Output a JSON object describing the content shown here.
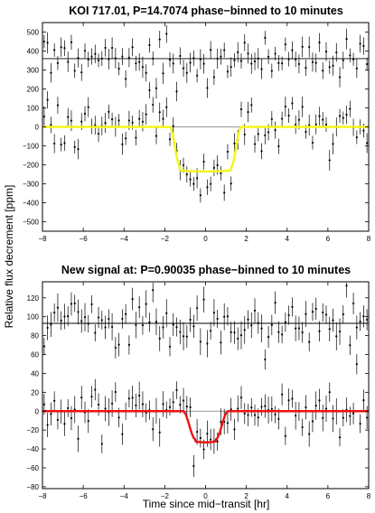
{
  "figure": {
    "ylabel": "Relative flux decrement [ppm]",
    "xlabel": "Time since mid−transit [hr]"
  },
  "chart_data": [
    {
      "type": "scatter",
      "title": "KOI 717.01, P=14.7074 phase−binned to 10 minutes",
      "xlim": [
        -8,
        8
      ],
      "ylim": [
        -550,
        550
      ],
      "xticks": [
        -8,
        -6,
        -4,
        -2,
        0,
        2,
        4,
        6,
        8
      ],
      "xtick_labels": [
        "−8",
        "−6",
        "−4",
        "−2",
        "0",
        "2",
        "4",
        "6",
        "8"
      ],
      "yticks": [
        -500,
        -400,
        -300,
        -200,
        -100,
        0,
        100,
        200,
        300,
        400,
        500
      ],
      "ytick_labels": [
        "−500",
        "−400",
        "−300",
        "−200",
        "−100",
        "0",
        "100",
        "200",
        "300",
        "400",
        "500"
      ],
      "reference_lines": [
        360,
        0
      ],
      "scatter_offset": 360,
      "transit": {
        "depth": -235,
        "t1": 1.75,
        "t2": 1.25,
        "color": "#f5f51a"
      },
      "noise": 62,
      "errorbar": 45,
      "n_points": 96,
      "grid": false
    },
    {
      "type": "scatter",
      "title": "New signal at: P=0.90035 phase−binned to 10 minutes",
      "xlim": [
        -8,
        8
      ],
      "ylim": [
        -82,
        137
      ],
      "xticks": [
        -8,
        -6,
        -4,
        -2,
        0,
        2,
        4,
        6,
        8
      ],
      "xtick_labels": [
        "−8",
        "−6",
        "−4",
        "−2",
        "0",
        "2",
        "4",
        "6",
        "8"
      ],
      "yticks": [
        -80,
        -60,
        -40,
        -20,
        0,
        20,
        40,
        60,
        80,
        100,
        120
      ],
      "ytick_labels": [
        "−80",
        "−60",
        "−40",
        "−20",
        "0",
        "20",
        "40",
        "60",
        "80",
        "100",
        "120"
      ],
      "reference_lines": [
        93,
        0
      ],
      "scatter_offset": 93,
      "transit": {
        "depth": -33,
        "t1": 1.1,
        "t2": 0.5,
        "color": "#ee1111"
      },
      "noise": 15,
      "errorbar": 12,
      "n_points": 96,
      "grid": false
    }
  ]
}
